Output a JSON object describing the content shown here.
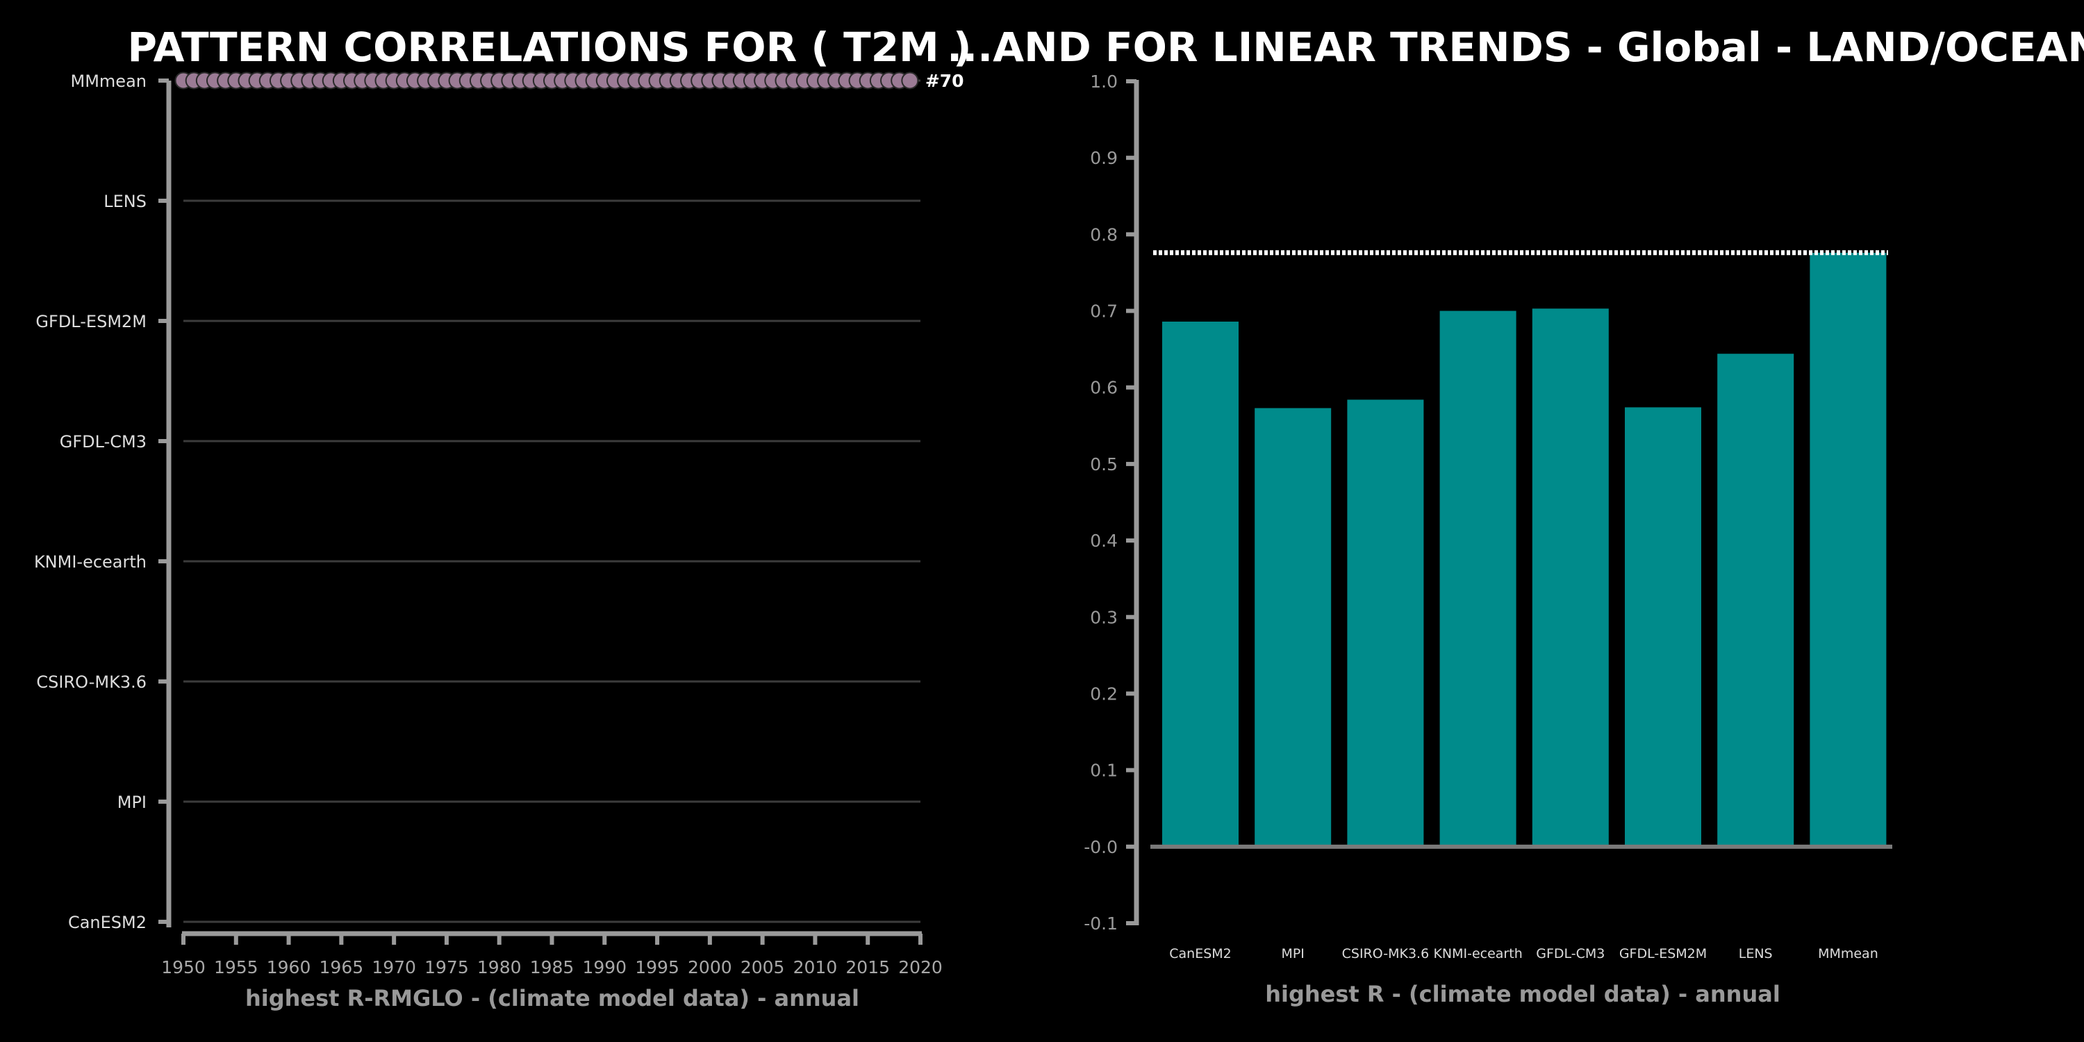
{
  "titles": {
    "left": "PATTERN CORRELATIONS FOR ( T2M )",
    "right": "...AND FOR LINEAR TRENDS - Global - LAND/OCEAN"
  },
  "chart_data": [
    {
      "type": "scatter",
      "models": [
        "CanESM2",
        "MPI",
        "CSIRO-MK3.6",
        "KNMI-ecearth",
        "GFDL-CM3",
        "GFDL-ESM2M",
        "LENS",
        "MMmean"
      ],
      "x_ticks": [
        1950,
        1955,
        1960,
        1965,
        1970,
        1975,
        1980,
        1985,
        1990,
        1995,
        2000,
        2005,
        2010,
        2015,
        2020
      ],
      "xlim": [
        1950,
        2020
      ],
      "x_start": 1950,
      "x_end": 2019,
      "highlight_model": "MMmean",
      "annotation": "#70",
      "point_color": "#9b7b95",
      "xlabel": "highest R-RMGLO - (climate model data) - annual",
      "grid": "horizontal"
    },
    {
      "type": "bar",
      "categories": [
        "CanESM2",
        "MPI",
        "CSIRO-MK3.6",
        "KNMI-ecearth",
        "GFDL-CM3",
        "GFDL-ESM2M",
        "LENS",
        "MMmean"
      ],
      "values": [
        0.686,
        0.573,
        0.584,
        0.7,
        0.703,
        0.574,
        0.644,
        0.776
      ],
      "reference_line": 0.776,
      "bar_color": "#008b8b",
      "ylim": [
        -0.1,
        1.0
      ],
      "y_ticks": [
        "1.0",
        "0.9",
        "0.8",
        "0.7",
        "0.6",
        "0.5",
        "0.4",
        "0.3",
        "0.2",
        "0.1",
        "-0.0",
        "-0.1"
      ],
      "xlabel": "highest R - (climate model data) - annual"
    }
  ]
}
